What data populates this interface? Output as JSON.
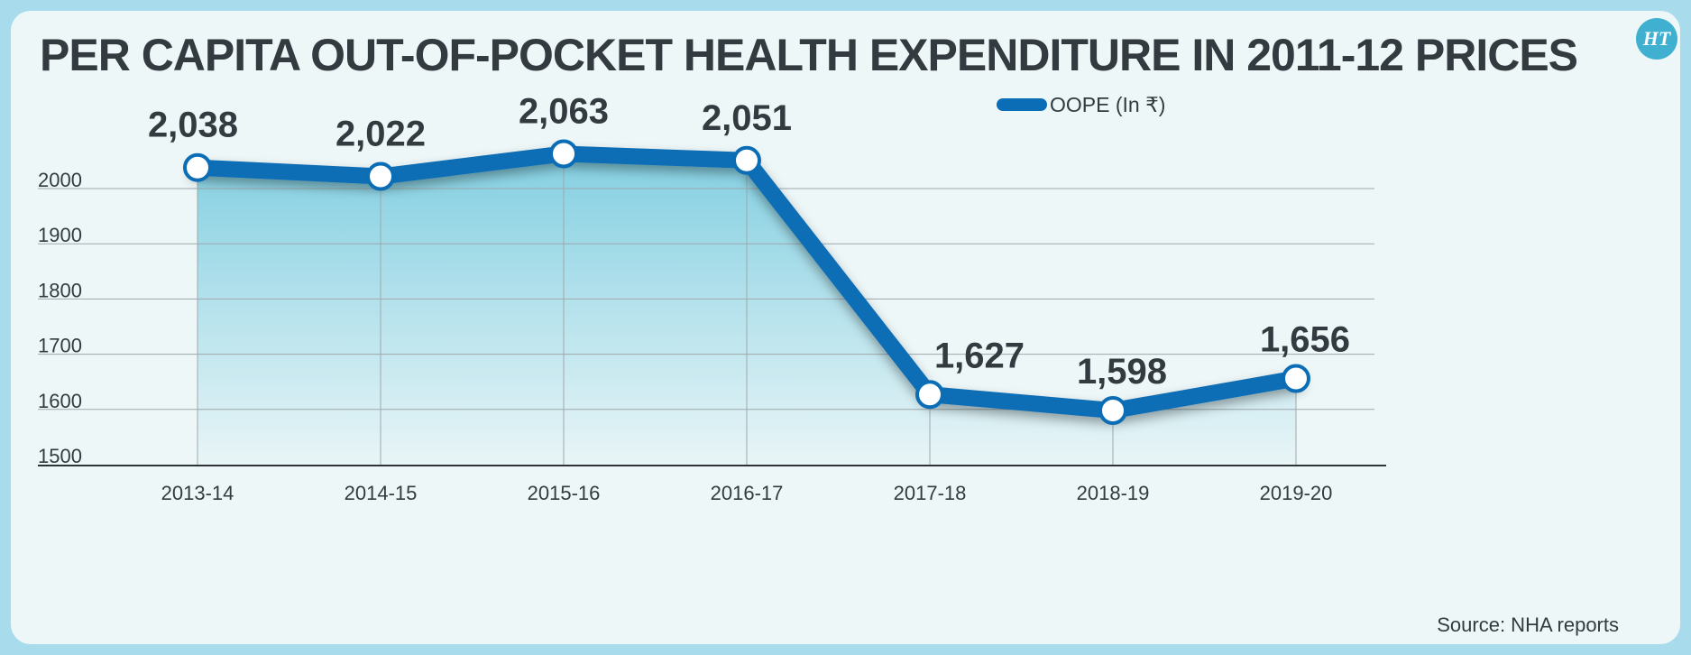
{
  "title": "PER CAPITA OUT-OF-POCKET HEALTH EXPENDITURE IN 2011-12 PRICES",
  "logo_text": "HT",
  "logo_icon": "ht-logo-icon",
  "source": "Source: NHA reports",
  "colors": {
    "line": "#0a6db5",
    "area_top": "#7dcde0",
    "grid": "#9ea8ac",
    "text": "#333b40",
    "background": "#eef7f8",
    "frame": "#a8dcec"
  },
  "legend": {
    "label": "OOPE  (In ₹)",
    "placement": "top-right"
  },
  "chart_data": {
    "type": "line",
    "title": "PER CAPITA OUT-OF-POCKET HEALTH EXPENDITURE IN 2011-12 PRICES",
    "xlabel": "",
    "ylabel": "",
    "categories": [
      "2013-14",
      "2014-15",
      "2015-16",
      "2016-17",
      "2017-18",
      "2018-19",
      "2019-20"
    ],
    "series": [
      {
        "name": "OOPE  (In ₹)",
        "values": [
          2038,
          2022,
          2063,
          2051,
          1627,
          1598,
          1656
        ],
        "labels": [
          "2,038",
          "2,022",
          "2,063",
          "2,051",
          "1,627",
          "1,598",
          "1,656"
        ]
      }
    ],
    "yticks": [
      1500,
      1600,
      1700,
      1800,
      1900,
      2000
    ],
    "ylim": [
      1500,
      2000
    ],
    "grid": true,
    "area_fill": true
  }
}
